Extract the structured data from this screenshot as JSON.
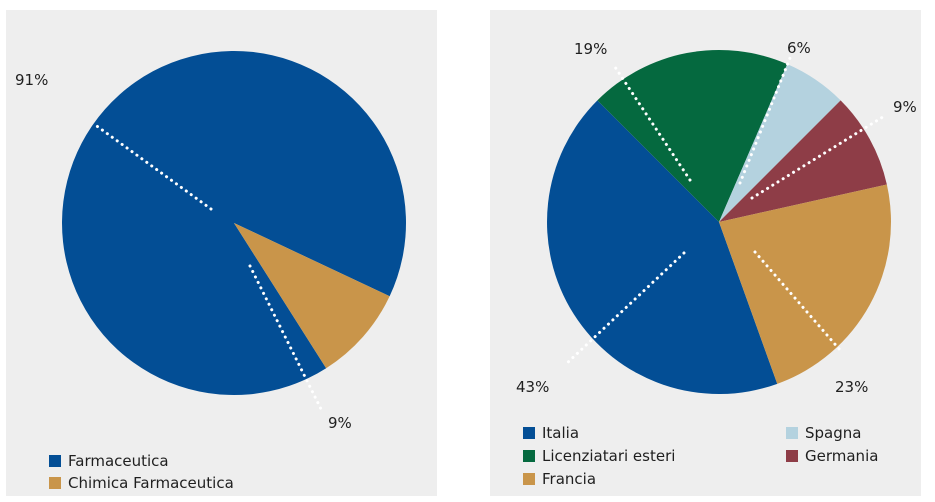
{
  "colors": {
    "blue": "#034E95",
    "gold": "#C9954A",
    "green": "#05693F",
    "lightblue": "#B4D2DF",
    "red": "#8E3D47",
    "panel_bg": "#EEEEEE"
  },
  "chart_data": [
    {
      "type": "pie",
      "title": "",
      "slices": [
        {
          "label": "Farmaceutica",
          "value": 91,
          "value_label": "91%",
          "color": "#034E95"
        },
        {
          "label": "Chimica Farmaceutica",
          "value": 9,
          "value_label": "9%",
          "color": "#C9954A"
        }
      ],
      "legend": {
        "placement": "bottom-left"
      }
    },
    {
      "type": "pie",
      "title": "",
      "slices": [
        {
          "label": "Italia",
          "value": 43,
          "value_label": "43%",
          "color": "#034E95"
        },
        {
          "label": "Licenziatari esteri",
          "value": 19,
          "value_label": "19%",
          "color": "#05693F"
        },
        {
          "label": "Spagna",
          "value": 6,
          "value_label": "6%",
          "color": "#B4D2DF"
        },
        {
          "label": "Germania",
          "value": 9,
          "value_label": "9%",
          "color": "#8E3D47"
        },
        {
          "label": "Francia",
          "value": 23,
          "value_label": "23%",
          "color": "#C9954A"
        }
      ],
      "legend": {
        "placement": "bottom",
        "columns": 2
      }
    }
  ]
}
